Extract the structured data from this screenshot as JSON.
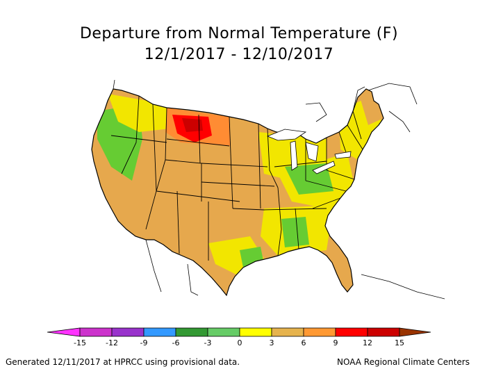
{
  "title": "Departure from Normal Temperature (F)",
  "date_range": "12/1/2017 - 12/10/2017",
  "footer_left": "Generated 12/11/2017 at HPRCC using provisional data.",
  "footer_right": "NOAA Regional Climate Centers",
  "colorbar": {
    "ticks": [
      "-15",
      "-12",
      "-9",
      "-6",
      "-3",
      "0",
      "3",
      "6",
      "9",
      "12",
      "15"
    ],
    "colors": [
      "#ff33ff",
      "#cc33cc",
      "#9933cc",
      "#3399ff",
      "#339933",
      "#66cc66",
      "#ffff00",
      "#e6b34d",
      "#ff9933",
      "#ff0000",
      "#cc0000",
      "#993300"
    ]
  },
  "map_colors": {
    "base_warm": "#e6a84d",
    "strong_warm": "#ff8c33",
    "hot": "#ff0000",
    "mild": "#f2e600",
    "cool": "#66cc33",
    "cooler": "#33a633",
    "lake": "#ffffff"
  }
}
